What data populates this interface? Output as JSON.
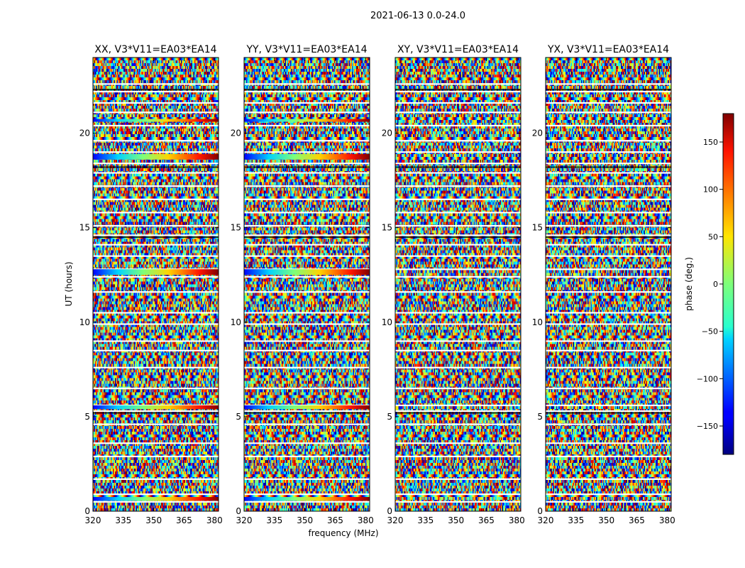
{
  "suptitle": "2021-06-13 0.0-24.0",
  "chart_data": {
    "type": "heatmap",
    "xlabel": "frequency (MHz)",
    "ylabel": "UT (hours)",
    "xlim": [
      320,
      382
    ],
    "ylim": [
      0,
      24
    ],
    "xticks": [
      320,
      335,
      350,
      365,
      380
    ],
    "yticks": [
      0,
      5,
      10,
      15,
      20
    ],
    "panels": [
      {
        "title": "XX, V3*V11=EA03*EA14"
      },
      {
        "title": "YY, V3*V11=EA03*EA14"
      },
      {
        "title": "XY, V3*V11=EA03*EA14"
      },
      {
        "title": "YX, V3*V11=EA03*EA14"
      }
    ],
    "colorbar": {
      "label": "phase (deg.)",
      "range": [
        -180,
        180
      ],
      "ticks": [
        -150,
        -100,
        -50,
        0,
        50,
        100,
        150
      ],
      "colormap": "jet"
    },
    "flagged_utc_hours": [
      0.5,
      0.9,
      1.7,
      2.9,
      3.6,
      4.6,
      5.3,
      5.6,
      6.5,
      7.6,
      8.5,
      9.0,
      9.9,
      10.5,
      11.6,
      12.4,
      12.8,
      13.5,
      14.1,
      14.6,
      15.1,
      15.8,
      16.5,
      17.2,
      17.9,
      18.4,
      19.0,
      19.6,
      20.4,
      21.1,
      21.6,
      22.2,
      22.6
    ],
    "solid_bands": [
      {
        "panels": [
          0,
          1
        ],
        "ut_from": 0.55,
        "ut_to": 0.75
      },
      {
        "panels": [
          0,
          1
        ],
        "ut_from": 5.4,
        "ut_to": 5.6
      },
      {
        "panels": [
          0,
          1
        ],
        "ut_from": 12.5,
        "ut_to": 12.8
      },
      {
        "panels": [
          0,
          1
        ],
        "ut_from": 18.6,
        "ut_to": 18.9
      },
      {
        "panels": [
          0,
          1
        ],
        "ut_from": 20.6,
        "ut_to": 20.75
      }
    ]
  }
}
